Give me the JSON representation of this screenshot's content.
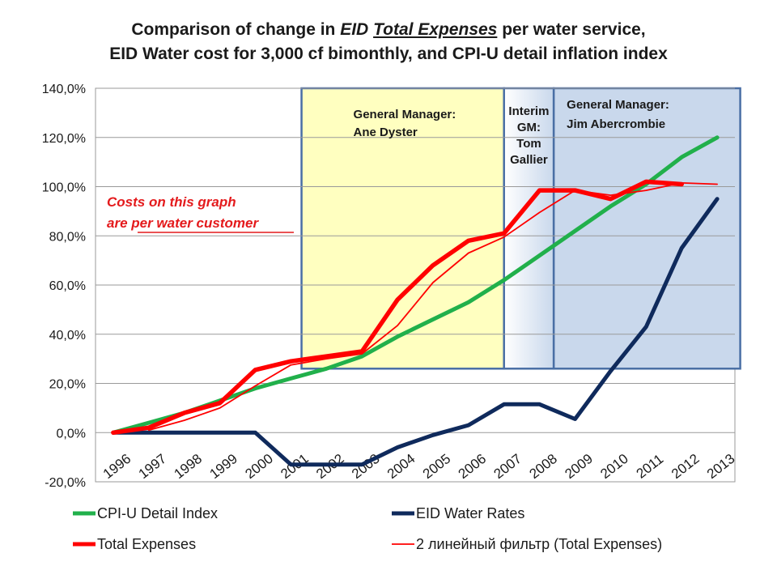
{
  "title": {
    "line1_pre": "Comparison of change in ",
    "line1_em1": "EID",
    "line1_em2": "Total Expenses",
    "line1_post": " per water service,",
    "line2": "EID Water cost for 3,000 cf bimonthly, and CPI-U detail inflation index"
  },
  "annotations": {
    "gm1": [
      "General Manager:",
      "Ane Dyster"
    ],
    "gm2": [
      "Interim",
      "GM:",
      "Tom",
      "Gallier"
    ],
    "gm3": [
      "General Manager:",
      "Jim Abercrombie"
    ],
    "note": [
      "Costs on this graph",
      "are per water customer"
    ]
  },
  "colors": {
    "cpi": "#21b04b",
    "water": "#0f2a5c",
    "expenses": "#ff0000",
    "filter": "#ff0000",
    "gm1_fill": "#ffffc0",
    "gm3_fill": "#c9d8ec",
    "frame": "#4a6fa5"
  },
  "chart_data": {
    "type": "line",
    "x": [
      "1996",
      "1997",
      "1998",
      "1999",
      "2000",
      "2001",
      "2002",
      "2003",
      "2004",
      "2005",
      "2006",
      "2007",
      "2008",
      "2009",
      "2010",
      "2011",
      "2012",
      "2013"
    ],
    "ylim": [
      -20,
      140
    ],
    "yticks": [
      "-20,0%",
      "0,0%",
      "20,0%",
      "40,0%",
      "60,0%",
      "80,0%",
      "100,0%",
      "120,0%",
      "140,0%"
    ],
    "grid": "horizontal",
    "legend_position": "bottom",
    "series": [
      {
        "name": "CPI-U Detail Index",
        "key": "cpi",
        "values": [
          0,
          4,
          8,
          13,
          18,
          22,
          26,
          31,
          39,
          46,
          53,
          62,
          72,
          82,
          92,
          101,
          112,
          120
        ]
      },
      {
        "name": "EID Water Rates",
        "key": "water",
        "values": [
          0,
          0,
          0,
          0,
          0,
          -13,
          -13,
          -13,
          -6,
          -1,
          3,
          11.5,
          11.5,
          5.5,
          25,
          43,
          75,
          95
        ]
      },
      {
        "name": "Total Expenses",
        "key": "expenses",
        "values": [
          0,
          2,
          8,
          12,
          25.5,
          29,
          31,
          33,
          54,
          68,
          78,
          81,
          98.5,
          98.5,
          95,
          102,
          101,
          null
        ]
      },
      {
        "name": "2 линейный фильтр (Total Expenses)",
        "key": "filter",
        "values": [
          null,
          1,
          5,
          10,
          19,
          27.5,
          30,
          32,
          43.5,
          61,
          73,
          79.5,
          89.5,
          98.5,
          96.5,
          98.5,
          101.5,
          101
        ]
      }
    ]
  }
}
